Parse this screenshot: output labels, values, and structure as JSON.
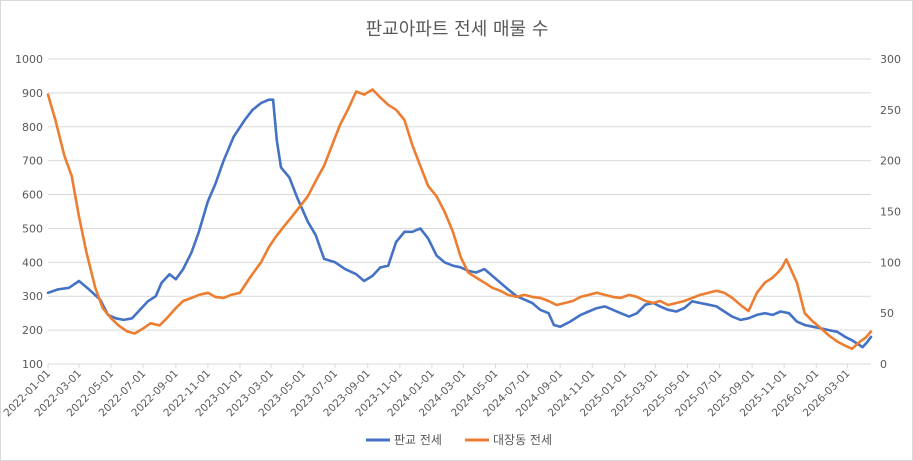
{
  "chart_data": {
    "type": "line",
    "title": "판교아파트 전세 매물 수",
    "xlabel": "",
    "ylabel": "",
    "y_left": {
      "lim": [
        100,
        1000
      ],
      "ticks": [
        100,
        200,
        300,
        400,
        500,
        600,
        700,
        800,
        900,
        1000
      ]
    },
    "y_right": {
      "lim": [
        0,
        300
      ],
      "ticks": [
        0,
        50,
        100,
        150,
        200,
        250,
        300
      ]
    },
    "grid": true,
    "legend_position": "bottom",
    "x_range": [
      "2022-01-01",
      "2026-04-15"
    ],
    "x_ticks": [
      "2022-01-01",
      "2022-03-01",
      "2022-05-01",
      "2022-07-01",
      "2022-09-01",
      "2022-11-01",
      "2023-01-01",
      "2023-03-01",
      "2023-05-01",
      "2023-07-01",
      "2023-09-01",
      "2023-11-01",
      "2024-01-01",
      "2024-03-01",
      "2024-05-01",
      "2024-07-01",
      "2024-09-01",
      "2024-11-01",
      "2025-01-01",
      "2025-03-01",
      "2025-05-01",
      "2025-07-01",
      "2025-09-01",
      "2025-11-01",
      "2026-01-01",
      "2026-03-01"
    ],
    "series": [
      {
        "name": "판교 전세",
        "axis": "left",
        "color": "#4472c4",
        "points": [
          [
            "2022-01-01",
            310
          ],
          [
            "2022-01-20",
            320
          ],
          [
            "2022-02-10",
            325
          ],
          [
            "2022-03-01",
            345
          ],
          [
            "2022-03-20",
            320
          ],
          [
            "2022-04-10",
            290
          ],
          [
            "2022-04-25",
            245
          ],
          [
            "2022-05-10",
            235
          ],
          [
            "2022-05-25",
            230
          ],
          [
            "2022-06-10",
            235
          ],
          [
            "2022-06-25",
            260
          ],
          [
            "2022-07-10",
            285
          ],
          [
            "2022-07-25",
            300
          ],
          [
            "2022-08-05",
            340
          ],
          [
            "2022-08-20",
            365
          ],
          [
            "2022-09-01",
            350
          ],
          [
            "2022-09-15",
            380
          ],
          [
            "2022-10-01",
            430
          ],
          [
            "2022-10-15",
            490
          ],
          [
            "2022-11-01",
            580
          ],
          [
            "2022-11-15",
            630
          ],
          [
            "2022-12-01",
            700
          ],
          [
            "2022-12-20",
            770
          ],
          [
            "2023-01-10",
            820
          ],
          [
            "2023-01-25",
            850
          ],
          [
            "2023-02-10",
            870
          ],
          [
            "2023-02-25",
            880
          ],
          [
            "2023-03-05",
            880
          ],
          [
            "2023-03-12",
            760
          ],
          [
            "2023-03-20",
            680
          ],
          [
            "2023-04-05",
            650
          ],
          [
            "2023-04-20",
            590
          ],
          [
            "2023-05-10",
            520
          ],
          [
            "2023-05-25",
            480
          ],
          [
            "2023-06-10",
            410
          ],
          [
            "2023-07-01",
            400
          ],
          [
            "2023-07-20",
            380
          ],
          [
            "2023-08-10",
            365
          ],
          [
            "2023-08-25",
            345
          ],
          [
            "2023-09-10",
            360
          ],
          [
            "2023-09-25",
            385
          ],
          [
            "2023-10-10",
            390
          ],
          [
            "2023-10-25",
            460
          ],
          [
            "2023-11-10",
            490
          ],
          [
            "2023-11-25",
            490
          ],
          [
            "2023-12-10",
            500
          ],
          [
            "2023-12-25",
            470
          ],
          [
            "2024-01-10",
            420
          ],
          [
            "2024-01-25",
            400
          ],
          [
            "2024-02-10",
            390
          ],
          [
            "2024-02-25",
            385
          ],
          [
            "2024-03-10",
            375
          ],
          [
            "2024-03-25",
            370
          ],
          [
            "2024-04-10",
            380
          ],
          [
            "2024-04-25",
            360
          ],
          [
            "2024-05-10",
            340
          ],
          [
            "2024-05-25",
            320
          ],
          [
            "2024-06-10",
            300
          ],
          [
            "2024-06-25",
            290
          ],
          [
            "2024-07-10",
            280
          ],
          [
            "2024-07-25",
            260
          ],
          [
            "2024-08-10",
            250
          ],
          [
            "2024-08-20",
            215
          ],
          [
            "2024-09-01",
            210
          ],
          [
            "2024-09-20",
            225
          ],
          [
            "2024-10-10",
            245
          ],
          [
            "2024-10-25",
            255
          ],
          [
            "2024-11-10",
            265
          ],
          [
            "2024-11-25",
            270
          ],
          [
            "2024-12-10",
            260
          ],
          [
            "2024-12-25",
            250
          ],
          [
            "2025-01-10",
            240
          ],
          [
            "2025-01-25",
            250
          ],
          [
            "2025-02-10",
            275
          ],
          [
            "2025-02-25",
            280
          ],
          [
            "2025-03-10",
            270
          ],
          [
            "2025-03-25",
            260
          ],
          [
            "2025-04-10",
            255
          ],
          [
            "2025-04-25",
            265
          ],
          [
            "2025-05-10",
            285
          ],
          [
            "2025-05-25",
            280
          ],
          [
            "2025-06-10",
            275
          ],
          [
            "2025-06-25",
            270
          ],
          [
            "2025-07-10",
            255
          ],
          [
            "2025-07-25",
            240
          ],
          [
            "2025-08-10",
            230
          ],
          [
            "2025-08-25",
            235
          ],
          [
            "2025-09-10",
            245
          ],
          [
            "2025-09-25",
            250
          ],
          [
            "2025-10-10",
            245
          ],
          [
            "2025-10-25",
            255
          ],
          [
            "2025-11-10",
            250
          ],
          [
            "2025-11-25",
            225
          ],
          [
            "2025-12-10",
            215
          ],
          [
            "2025-12-25",
            210
          ],
          [
            "2026-01-10",
            205
          ],
          [
            "2026-01-25",
            200
          ],
          [
            "2026-02-10",
            195
          ],
          [
            "2026-02-25",
            180
          ],
          [
            "2026-03-10",
            170
          ],
          [
            "2026-03-20",
            160
          ],
          [
            "2026-03-30",
            150
          ],
          [
            "2026-04-08",
            165
          ],
          [
            "2026-04-15",
            180
          ]
        ]
      },
      {
        "name": "대장동 전세",
        "axis": "right",
        "color": "#ed7d31",
        "points": [
          [
            "2022-01-01",
            265
          ],
          [
            "2022-01-15",
            240
          ],
          [
            "2022-02-01",
            205
          ],
          [
            "2022-02-15",
            185
          ],
          [
            "2022-03-01",
            145
          ],
          [
            "2022-03-15",
            110
          ],
          [
            "2022-04-01",
            75
          ],
          [
            "2022-04-15",
            55
          ],
          [
            "2022-05-01",
            45
          ],
          [
            "2022-05-15",
            38
          ],
          [
            "2022-06-01",
            32
          ],
          [
            "2022-06-15",
            30
          ],
          [
            "2022-07-01",
            35
          ],
          [
            "2022-07-15",
            40
          ],
          [
            "2022-08-01",
            38
          ],
          [
            "2022-08-15",
            45
          ],
          [
            "2022-09-01",
            55
          ],
          [
            "2022-09-15",
            62
          ],
          [
            "2022-10-01",
            65
          ],
          [
            "2022-10-15",
            68
          ],
          [
            "2022-11-01",
            70
          ],
          [
            "2022-11-15",
            66
          ],
          [
            "2022-12-01",
            65
          ],
          [
            "2022-12-15",
            68
          ],
          [
            "2023-01-01",
            70
          ],
          [
            "2023-01-20",
            85
          ],
          [
            "2023-02-10",
            100
          ],
          [
            "2023-02-25",
            115
          ],
          [
            "2023-03-10",
            125
          ],
          [
            "2023-03-25",
            135
          ],
          [
            "2023-04-10",
            145
          ],
          [
            "2023-04-25",
            155
          ],
          [
            "2023-05-10",
            165
          ],
          [
            "2023-05-25",
            180
          ],
          [
            "2023-06-10",
            195
          ],
          [
            "2023-06-25",
            215
          ],
          [
            "2023-07-10",
            235
          ],
          [
            "2023-07-25",
            250
          ],
          [
            "2023-08-10",
            268
          ],
          [
            "2023-08-25",
            265
          ],
          [
            "2023-09-10",
            270
          ],
          [
            "2023-09-25",
            262
          ],
          [
            "2023-10-10",
            255
          ],
          [
            "2023-10-25",
            250
          ],
          [
            "2023-11-10",
            240
          ],
          [
            "2023-11-25",
            215
          ],
          [
            "2023-12-10",
            195
          ],
          [
            "2023-12-25",
            175
          ],
          [
            "2024-01-10",
            165
          ],
          [
            "2024-01-25",
            150
          ],
          [
            "2024-02-10",
            130
          ],
          [
            "2024-02-25",
            105
          ],
          [
            "2024-03-10",
            90
          ],
          [
            "2024-03-25",
            85
          ],
          [
            "2024-04-10",
            80
          ],
          [
            "2024-04-25",
            75
          ],
          [
            "2024-05-10",
            72
          ],
          [
            "2024-05-25",
            68
          ],
          [
            "2024-06-10",
            66
          ],
          [
            "2024-06-25",
            68
          ],
          [
            "2024-07-10",
            66
          ],
          [
            "2024-07-25",
            65
          ],
          [
            "2024-08-10",
            62
          ],
          [
            "2024-08-25",
            58
          ],
          [
            "2024-09-10",
            60
          ],
          [
            "2024-09-25",
            62
          ],
          [
            "2024-10-10",
            66
          ],
          [
            "2024-10-25",
            68
          ],
          [
            "2024-11-10",
            70
          ],
          [
            "2024-11-25",
            68
          ],
          [
            "2024-12-10",
            66
          ],
          [
            "2024-12-25",
            65
          ],
          [
            "2025-01-10",
            68
          ],
          [
            "2025-01-25",
            66
          ],
          [
            "2025-02-10",
            62
          ],
          [
            "2025-02-25",
            60
          ],
          [
            "2025-03-10",
            62
          ],
          [
            "2025-03-25",
            58
          ],
          [
            "2025-04-10",
            60
          ],
          [
            "2025-04-25",
            62
          ],
          [
            "2025-05-10",
            65
          ],
          [
            "2025-05-25",
            68
          ],
          [
            "2025-06-10",
            70
          ],
          [
            "2025-06-25",
            72
          ],
          [
            "2025-07-10",
            70
          ],
          [
            "2025-07-25",
            65
          ],
          [
            "2025-08-10",
            58
          ],
          [
            "2025-08-25",
            52
          ],
          [
            "2025-09-10",
            70
          ],
          [
            "2025-09-25",
            80
          ],
          [
            "2025-10-10",
            85
          ],
          [
            "2025-10-20",
            90
          ],
          [
            "2025-10-28",
            95
          ],
          [
            "2025-11-05",
            103
          ],
          [
            "2025-11-12",
            95
          ],
          [
            "2025-11-25",
            80
          ],
          [
            "2025-12-10",
            50
          ],
          [
            "2025-12-25",
            42
          ],
          [
            "2026-01-10",
            35
          ],
          [
            "2026-01-25",
            28
          ],
          [
            "2026-02-10",
            22
          ],
          [
            "2026-02-25",
            18
          ],
          [
            "2026-03-10",
            15
          ],
          [
            "2026-03-25",
            22
          ],
          [
            "2026-04-05",
            26
          ],
          [
            "2026-04-15",
            32
          ]
        ]
      }
    ]
  }
}
